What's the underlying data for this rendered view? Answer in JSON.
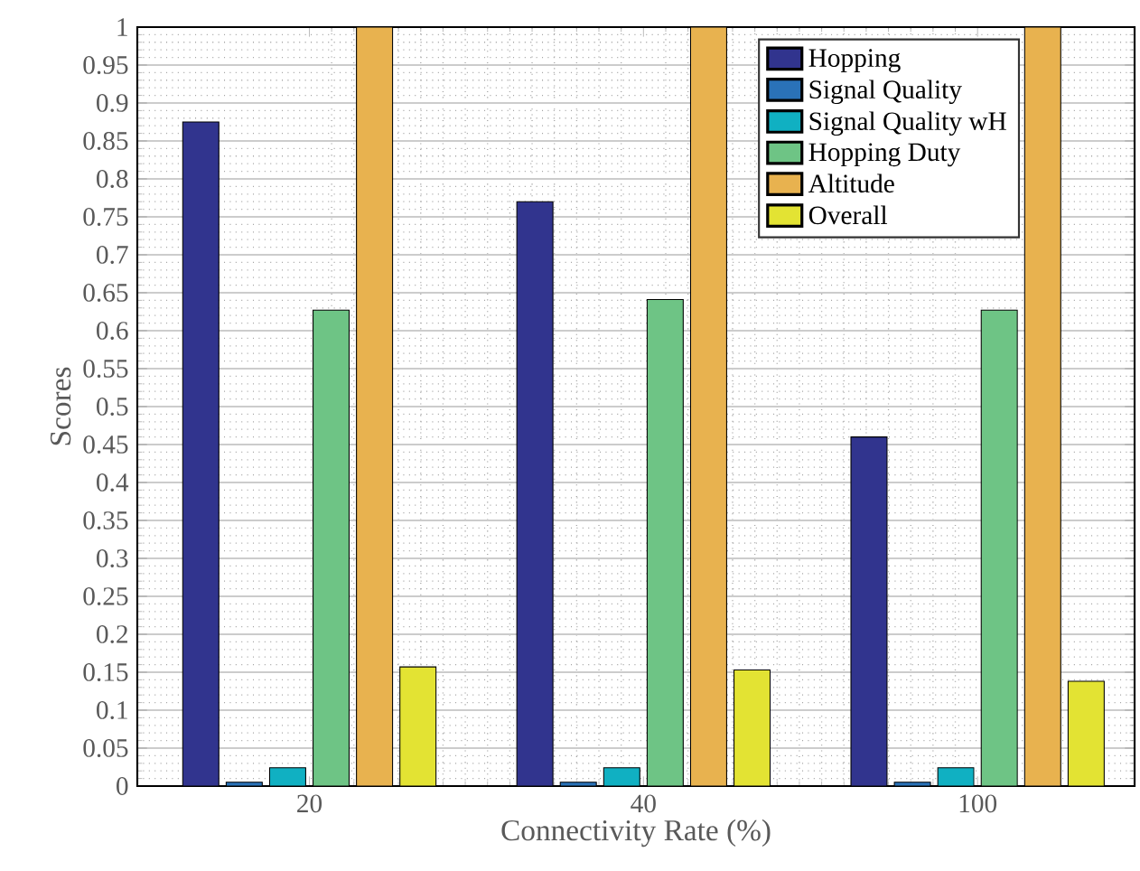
{
  "chart_data": {
    "type": "bar",
    "xlabel": "Connectivity Rate (%)",
    "ylabel": "Scores",
    "categories": [
      "20",
      "40",
      "100"
    ],
    "series": [
      {
        "name": "Hopping",
        "color": "#31348e",
        "values": [
          0.875,
          0.77,
          0.46
        ]
      },
      {
        "name": "Signal Quality",
        "color": "#2a72b8",
        "values": [
          0.005,
          0.005,
          0.005
        ]
      },
      {
        "name": "Signal Quality wH",
        "color": "#10b0c2",
        "values": [
          0.024,
          0.024,
          0.024
        ]
      },
      {
        "name": "Hopping Duty",
        "color": "#6ec485",
        "values": [
          0.627,
          0.641,
          0.627
        ]
      },
      {
        "name": "Altitude",
        "color": "#e8b24f",
        "values": [
          1,
          1,
          1
        ]
      },
      {
        "name": "Overall",
        "color": "#e3e333",
        "values": [
          0.157,
          0.153,
          0.138
        ]
      }
    ],
    "ylim": [
      0,
      1
    ],
    "yticks": [
      0,
      0.05,
      0.1,
      0.15,
      0.2,
      0.25,
      0.3,
      0.35,
      0.4,
      0.45,
      0.5,
      0.55,
      0.6,
      0.65,
      0.7,
      0.75,
      0.8,
      0.85,
      0.9,
      0.95,
      1
    ],
    "grid": true,
    "legend": "top right"
  }
}
